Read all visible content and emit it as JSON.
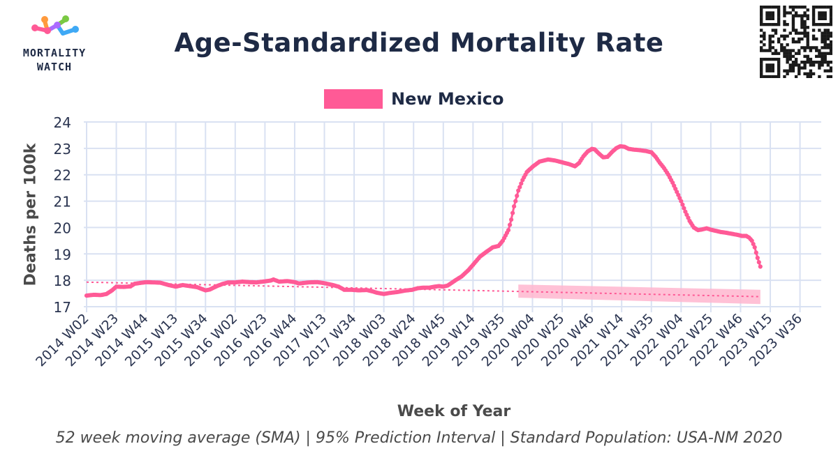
{
  "logo": {
    "line1": "MORTALITY",
    "line2": "WATCH"
  },
  "colors": {
    "series": "#ff5a96",
    "band": "#ffb6cf",
    "grid": "#d9e1f2",
    "text": "#1e2a45",
    "muted": "#4a4a4a"
  },
  "chart_data": {
    "type": "line",
    "title": "Age-Standardized Mortality Rate",
    "xlabel": "Week of Year",
    "ylabel": "Deaths per 100k",
    "caption": "52 week moving average (SMA) | 95% Prediction Interval | Standard Population: USA-NM 2020",
    "ylim": [
      17,
      24
    ],
    "yticks": [
      17,
      18,
      19,
      20,
      21,
      22,
      23,
      24
    ],
    "grid": true,
    "legend_position": "top-center",
    "x_start_index": 0,
    "x_end_index": 519,
    "xticks": [
      {
        "i": 0,
        "label": "2014 W02"
      },
      {
        "i": 21,
        "label": "2014 W23"
      },
      {
        "i": 42,
        "label": "2014 W44"
      },
      {
        "i": 63,
        "label": "2015 W13"
      },
      {
        "i": 84,
        "label": "2015 W34"
      },
      {
        "i": 105,
        "label": "2016 W02"
      },
      {
        "i": 126,
        "label": "2016 W23"
      },
      {
        "i": 147,
        "label": "2016 W44"
      },
      {
        "i": 168,
        "label": "2017 W13"
      },
      {
        "i": 189,
        "label": "2017 W34"
      },
      {
        "i": 210,
        "label": "2018 W03"
      },
      {
        "i": 231,
        "label": "2018 W24"
      },
      {
        "i": 252,
        "label": "2018 W45"
      },
      {
        "i": 273,
        "label": "2019 W14"
      },
      {
        "i": 294,
        "label": "2019 W35"
      },
      {
        "i": 315,
        "label": "2020 W04"
      },
      {
        "i": 336,
        "label": "2020 W25"
      },
      {
        "i": 357,
        "label": "2020 W46"
      },
      {
        "i": 378,
        "label": "2021 W14"
      },
      {
        "i": 399,
        "label": "2021 W35"
      },
      {
        "i": 420,
        "label": "2022 W04"
      },
      {
        "i": 441,
        "label": "2022 W25"
      },
      {
        "i": 462,
        "label": "2022 W46"
      },
      {
        "i": 483,
        "label": "2023 W15"
      },
      {
        "i": 504,
        "label": "2023 W36"
      }
    ],
    "series": [
      {
        "name": "New Mexico",
        "keypoints": [
          [
            0,
            17.42
          ],
          [
            5,
            17.45
          ],
          [
            10,
            17.44
          ],
          [
            14,
            17.48
          ],
          [
            18,
            17.62
          ],
          [
            21,
            17.76
          ],
          [
            26,
            17.75
          ],
          [
            31,
            17.77
          ],
          [
            34,
            17.87
          ],
          [
            38,
            17.9
          ],
          [
            42,
            17.93
          ],
          [
            47,
            17.92
          ],
          [
            52,
            17.91
          ],
          [
            58,
            17.82
          ],
          [
            63,
            17.76
          ],
          [
            68,
            17.82
          ],
          [
            73,
            17.78
          ],
          [
            78,
            17.74
          ],
          [
            84,
            17.62
          ],
          [
            87,
            17.65
          ],
          [
            92,
            17.78
          ],
          [
            96,
            17.86
          ],
          [
            100,
            17.92
          ],
          [
            105,
            17.92
          ],
          [
            110,
            17.95
          ],
          [
            115,
            17.93
          ],
          [
            120,
            17.92
          ],
          [
            126,
            17.96
          ],
          [
            130,
            17.99
          ],
          [
            132,
            18.03
          ],
          [
            136,
            17.95
          ],
          [
            142,
            17.97
          ],
          [
            147,
            17.93
          ],
          [
            150,
            17.88
          ],
          [
            157,
            17.92
          ],
          [
            163,
            17.93
          ],
          [
            168,
            17.89
          ],
          [
            174,
            17.82
          ],
          [
            178,
            17.76
          ],
          [
            182,
            17.64
          ],
          [
            187,
            17.64
          ],
          [
            192,
            17.62
          ],
          [
            198,
            17.63
          ],
          [
            202,
            17.58
          ],
          [
            205,
            17.53
          ],
          [
            210,
            17.48
          ],
          [
            214,
            17.52
          ],
          [
            220,
            17.56
          ],
          [
            225,
            17.61
          ],
          [
            230,
            17.64
          ],
          [
            234,
            17.7
          ],
          [
            238,
            17.72
          ],
          [
            242,
            17.72
          ],
          [
            246,
            17.76
          ],
          [
            249,
            17.78
          ],
          [
            252,
            17.76
          ],
          [
            255,
            17.8
          ],
          [
            257,
            17.87
          ],
          [
            260,
            17.98
          ],
          [
            265,
            18.15
          ],
          [
            270,
            18.4
          ],
          [
            274,
            18.65
          ],
          [
            278,
            18.9
          ],
          [
            283,
            19.1
          ],
          [
            287,
            19.25
          ],
          [
            291,
            19.3
          ],
          [
            294,
            19.5
          ],
          [
            298,
            19.9
          ],
          [
            300,
            20.3
          ],
          [
            302,
            20.8
          ],
          [
            305,
            21.4
          ],
          [
            308,
            21.8
          ],
          [
            311,
            22.1
          ],
          [
            315,
            22.3
          ],
          [
            320,
            22.5
          ],
          [
            326,
            22.58
          ],
          [
            331,
            22.54
          ],
          [
            336,
            22.47
          ],
          [
            341,
            22.4
          ],
          [
            345,
            22.32
          ],
          [
            348,
            22.45
          ],
          [
            351,
            22.7
          ],
          [
            354,
            22.88
          ],
          [
            357,
            22.98
          ],
          [
            359,
            22.96
          ],
          [
            362,
            22.8
          ],
          [
            365,
            22.66
          ],
          [
            368,
            22.68
          ],
          [
            371,
            22.85
          ],
          [
            374,
            23.0
          ],
          [
            377,
            23.08
          ],
          [
            380,
            23.06
          ],
          [
            383,
            22.98
          ],
          [
            387,
            22.95
          ],
          [
            391,
            22.93
          ],
          [
            395,
            22.9
          ],
          [
            399,
            22.85
          ],
          [
            402,
            22.68
          ],
          [
            405,
            22.45
          ],
          [
            408,
            22.25
          ],
          [
            411,
            22.0
          ],
          [
            414,
            21.7
          ],
          [
            417,
            21.35
          ],
          [
            420,
            21.0
          ],
          [
            423,
            20.6
          ],
          [
            426,
            20.25
          ],
          [
            429,
            20.0
          ],
          [
            432,
            19.9
          ],
          [
            435,
            19.93
          ],
          [
            438,
            19.97
          ],
          [
            441,
            19.92
          ],
          [
            444,
            19.88
          ],
          [
            448,
            19.83
          ],
          [
            452,
            19.8
          ],
          [
            456,
            19.76
          ],
          [
            460,
            19.72
          ],
          [
            463,
            19.68
          ],
          [
            466,
            19.68
          ],
          [
            468,
            19.62
          ],
          [
            470,
            19.5
          ],
          [
            472,
            19.25
          ],
          [
            474,
            18.85
          ],
          [
            476,
            18.52
          ]
        ],
        "baseline": {
          "start": [
            0,
            17.93
          ],
          "end": [
            476,
            17.38
          ]
        },
        "prediction_interval": {
          "start_index": 305,
          "start_lower": 17.34,
          "start_upper": 17.84,
          "end_index": 476,
          "end_lower": 17.1,
          "end_upper": 17.64
        }
      }
    ]
  }
}
